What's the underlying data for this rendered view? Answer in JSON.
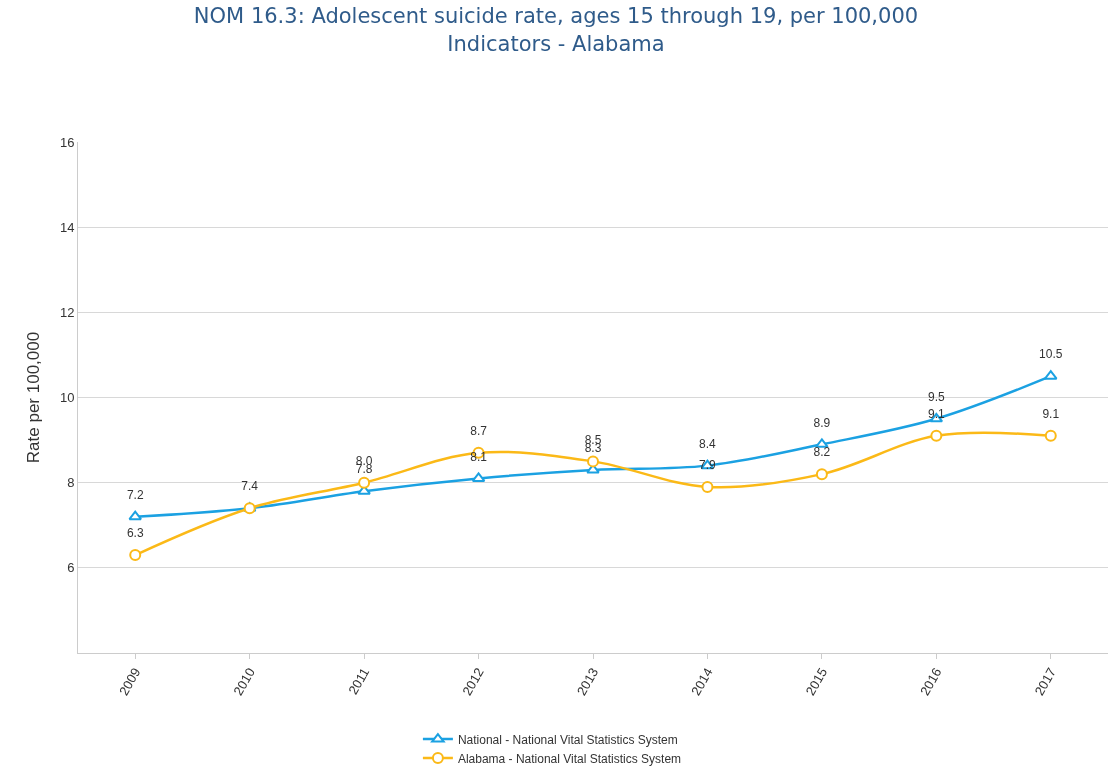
{
  "chart_data": {
    "type": "line",
    "title": "NOM 16.3: Adolescent suicide rate, ages 15 through 19, per 100,000\nIndicators - Alabama",
    "ylabel": "Rate per 100,000",
    "categories": [
      "2009",
      "2010",
      "2011",
      "2012",
      "2013",
      "2014",
      "2015",
      "2016",
      "2017"
    ],
    "series": [
      {
        "name": "National - National Vital Statistics System",
        "color": "#1ba1e2",
        "marker": "triangle",
        "values": [
          7.2,
          7.4,
          7.8,
          8.1,
          8.3,
          8.4,
          8.9,
          9.5,
          10.5
        ],
        "value_labels": [
          "7.2",
          null,
          "7.8",
          "8.1",
          "8.3",
          "8.4",
          "8.9",
          "9.5",
          "10.5"
        ]
      },
      {
        "name": "Alabama - National Vital Statistics System",
        "color": "#fbb917",
        "marker": "circle",
        "values": [
          6.3,
          7.4,
          8.0,
          8.7,
          8.5,
          7.9,
          8.2,
          9.1,
          9.1
        ],
        "value_labels": [
          "6.3",
          "7.4",
          "8.0",
          "8.7",
          "8.5",
          "7.9",
          "8.2",
          "9.1",
          "9.1"
        ]
      }
    ],
    "ylim": [
      4,
      16
    ],
    "yticks": [
      {
        "value": 4,
        "label": null
      },
      6,
      8,
      10,
      12,
      14,
      16
    ],
    "grid": "y",
    "legend": "bottom",
    "line_style": "solid"
  }
}
